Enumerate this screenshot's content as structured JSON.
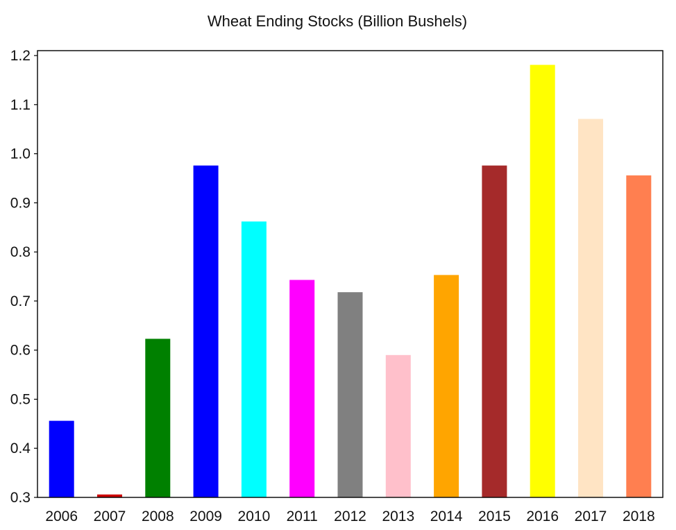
{
  "chart_data": {
    "type": "bar",
    "title": "Wheat Ending Stocks (Billion Bushels)",
    "xlabel": "",
    "ylabel": "",
    "categories": [
      "2006",
      "2007",
      "2008",
      "2009",
      "2010",
      "2011",
      "2012",
      "2013",
      "2014",
      "2015",
      "2016",
      "2017",
      "2018"
    ],
    "values": [
      0.456,
      0.306,
      0.623,
      0.976,
      0.862,
      0.743,
      0.718,
      0.59,
      0.753,
      0.976,
      1.181,
      1.071,
      0.956
    ],
    "colors": [
      "#0000ff",
      "#cc0000",
      "#008000",
      "#0000ff",
      "#00ffff",
      "#ff00ff",
      "#808080",
      "#ffc0cb",
      "#ffa500",
      "#a52a2a",
      "#ffff00",
      "#ffe4c4",
      "#ff7f50"
    ],
    "ylim": [
      0.3,
      1.21
    ],
    "yticks": [
      "0.3",
      "0.4",
      "0.5",
      "0.6",
      "0.7",
      "0.8",
      "0.9",
      "1.0",
      "1.1",
      "1.2"
    ],
    "grid": false,
    "legend": "none"
  }
}
